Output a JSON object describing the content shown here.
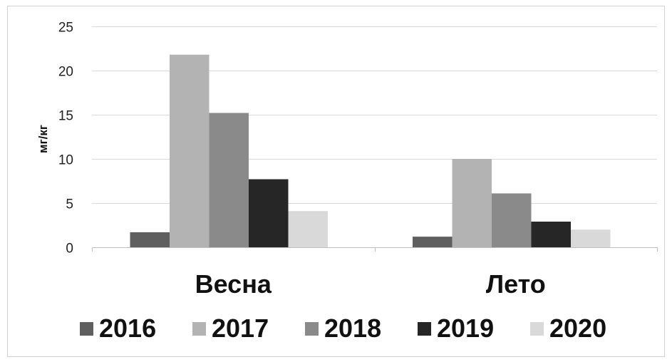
{
  "chart_data": {
    "type": "bar",
    "title": "",
    "xlabel": "",
    "ylabel": "мг/кг",
    "ylim": [
      0,
      25
    ],
    "yticks": [
      0,
      5,
      10,
      15,
      20,
      25
    ],
    "grid": true,
    "legend_position": "bottom",
    "categories": [
      "Весна",
      "Лето"
    ],
    "series": [
      {
        "name": "2016",
        "color": "#5f5f5f",
        "values": [
          1.7,
          1.2
        ]
      },
      {
        "name": "2017",
        "color": "#b3b3b3",
        "values": [
          21.8,
          10.0
        ]
      },
      {
        "name": "2018",
        "color": "#8a8a8a",
        "values": [
          15.2,
          6.1
        ]
      },
      {
        "name": "2019",
        "color": "#262626",
        "values": [
          7.7,
          2.9
        ]
      },
      {
        "name": "2020",
        "color": "#d9d9d9",
        "values": [
          4.1,
          2.0
        ]
      }
    ]
  }
}
